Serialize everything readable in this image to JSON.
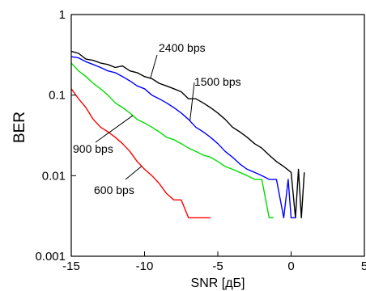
{
  "chart_data": {
    "type": "line",
    "title": "",
    "xlabel": "SNR [дБ]",
    "ylabel": "BER",
    "xlim": [
      -15,
      5
    ],
    "ylim": [
      0.001,
      1
    ],
    "yscale": "log",
    "grid": false,
    "xticks": [
      -15,
      -10,
      -5,
      0,
      5
    ],
    "xtick_labels": [
      "-15",
      "-10",
      "-5",
      "0",
      "5"
    ],
    "yticks": [
      0.001,
      0.01,
      0.1,
      1
    ],
    "ytick_labels": [
      "0.001",
      "0.01",
      "0.1",
      "1"
    ],
    "series": [
      {
        "name": "2400 bps",
        "color": "#000000",
        "x": [
          -15,
          -14.5,
          -14,
          -13.5,
          -13,
          -12.5,
          -12,
          -11.5,
          -11,
          -10.5,
          -10,
          -9.5,
          -9,
          -8.5,
          -8,
          -7.5,
          -7,
          -6.5,
          -6,
          -5.5,
          -5,
          -4.5,
          -4,
          -3.5,
          -3,
          -2.5,
          -2,
          -1.5,
          -1,
          -0.5,
          0,
          0.3,
          0.5,
          0.7,
          0.9
        ],
        "y": [
          0.35,
          0.33,
          0.28,
          0.27,
          0.25,
          0.24,
          0.22,
          0.23,
          0.2,
          0.19,
          0.17,
          0.16,
          0.14,
          0.13,
          0.12,
          0.11,
          0.09,
          0.09,
          0.08,
          0.07,
          0.06,
          0.05,
          0.04,
          0.035,
          0.03,
          0.025,
          0.022,
          0.018,
          0.015,
          0.013,
          0.011,
          0.003,
          0.012,
          0.003,
          0.011
        ]
      },
      {
        "name": "1500 bps",
        "color": "#0000ff",
        "x": [
          -15,
          -14.5,
          -14,
          -13.5,
          -13,
          -12.5,
          -12,
          -11.5,
          -11,
          -10.5,
          -10,
          -9.5,
          -9,
          -8.5,
          -8,
          -7.5,
          -7,
          -6.5,
          -6,
          -5.5,
          -5,
          -4.5,
          -4,
          -3.5,
          -3,
          -2.5,
          -2,
          -1.5,
          -1,
          -0.5,
          -0.2,
          0,
          0.3
        ],
        "y": [
          0.3,
          0.29,
          0.26,
          0.24,
          0.22,
          0.2,
          0.19,
          0.17,
          0.15,
          0.13,
          0.12,
          0.1,
          0.09,
          0.08,
          0.07,
          0.06,
          0.05,
          0.04,
          0.035,
          0.03,
          0.025,
          0.02,
          0.017,
          0.014,
          0.012,
          0.011,
          0.01,
          0.009,
          0.009,
          0.003,
          0.009,
          0.003,
          0.003
        ]
      },
      {
        "name": "900 bps",
        "color": "#00dd00",
        "x": [
          -15,
          -14.5,
          -14,
          -13.5,
          -13,
          -12.5,
          -12,
          -11.5,
          -11,
          -10.5,
          -10,
          -9.5,
          -9,
          -8.5,
          -8,
          -7.5,
          -7,
          -6.5,
          -6,
          -5.5,
          -5,
          -4.5,
          -4,
          -3.5,
          -3,
          -2.5,
          -2,
          -1.5,
          -1.2
        ],
        "y": [
          0.25,
          0.2,
          0.17,
          0.14,
          0.12,
          0.1,
          0.08,
          0.07,
          0.06,
          0.05,
          0.045,
          0.04,
          0.035,
          0.03,
          0.028,
          0.025,
          0.022,
          0.02,
          0.018,
          0.017,
          0.015,
          0.013,
          0.012,
          0.011,
          0.01,
          0.009,
          0.009,
          0.003,
          0.003
        ]
      },
      {
        "name": "600 bps",
        "color": "#ff0000",
        "x": [
          -15,
          -14.5,
          -14,
          -13.5,
          -13,
          -12.5,
          -12,
          -11.5,
          -11,
          -10.5,
          -10,
          -9.5,
          -9,
          -8.5,
          -8,
          -7.5,
          -7,
          -6.5,
          -6,
          -5.5
        ],
        "y": [
          0.12,
          0.09,
          0.07,
          0.05,
          0.04,
          0.035,
          0.03,
          0.025,
          0.02,
          0.015,
          0.012,
          0.01,
          0.008,
          0.006,
          0.005,
          0.005,
          0.003,
          0.003,
          0.003,
          0.003
        ]
      }
    ],
    "annotations": [
      {
        "label": "2400 bps",
        "series": "2400 bps"
      },
      {
        "label": "1500 bps",
        "series": "1500 bps"
      },
      {
        "label": "900 bps",
        "series": "900 bps"
      },
      {
        "label": "600 bps",
        "series": "600 bps"
      }
    ]
  }
}
